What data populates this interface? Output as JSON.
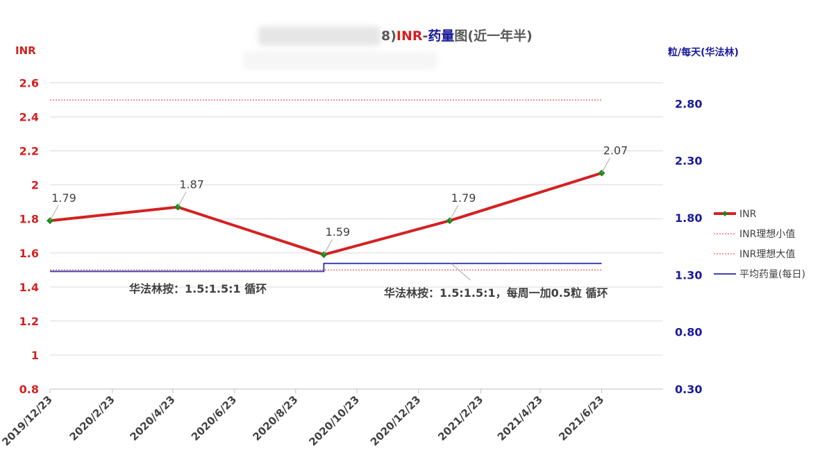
{
  "chart_data": {
    "type": "line",
    "title": "8)INR-药量图(近一年半)",
    "title_parts": [
      {
        "text": "8)",
        "color": "#595959"
      },
      {
        "text": "INR",
        "color": "#d42020"
      },
      {
        "text": "-",
        "color": "#595959"
      },
      {
        "text": "药量",
        "color": "#1a1a9a"
      },
      {
        "text": "图(近一年半)",
        "color": "#595959"
      }
    ],
    "y_left": {
      "label": "INR",
      "range": [
        0.8,
        2.7
      ],
      "ticks": [
        "0.8",
        "1",
        "1.2",
        "1.4",
        "1.6",
        "1.8",
        "2",
        "2.2",
        "2.4",
        "2.6"
      ],
      "color": "#d42020"
    },
    "y_right": {
      "label": "粒/每天(华法林)",
      "range": [
        0.3,
        3.13
      ],
      "ticks": [
        "0.30",
        "0.80",
        "1.30",
        "1.80",
        "2.30",
        "2.80"
      ],
      "color": "#1a1a9a"
    },
    "x_axis": {
      "start": "2019/12/23",
      "end": "2021/8/23",
      "ticks": [
        "2019/12/23",
        "2020/2/23",
        "2020/4/23",
        "2020/6/23",
        "2020/8/23",
        "2020/10/23",
        "2020/12/23",
        "2021/2/23",
        "2021/4/23",
        "2021/6/23"
      ]
    },
    "grid": true,
    "legend_position": "right",
    "series": [
      {
        "name": "INR",
        "axis": "left",
        "color": "#d42020",
        "style": "thick-line-diamond",
        "points": [
          {
            "x": "2019/12/23",
            "y": 1.79,
            "label": "1.79"
          },
          {
            "x": "2020/4/28",
            "y": 1.87,
            "label": "1.87"
          },
          {
            "x": "2020/9/20",
            "y": 1.59,
            "label": "1.59"
          },
          {
            "x": "2021/1/23",
            "y": 1.79,
            "label": "1.79"
          },
          {
            "x": "2021/6/23",
            "y": 2.07,
            "label": "2.07"
          }
        ]
      },
      {
        "name": "INR理想小值",
        "axis": "left",
        "color": "#e03030",
        "style": "dotted",
        "points": [
          {
            "x": "2019/12/23",
            "y": 1.5
          },
          {
            "x": "2021/6/23",
            "y": 1.5
          }
        ]
      },
      {
        "name": "INR理想大值",
        "axis": "left",
        "color": "#e03030",
        "style": "dotted",
        "points": [
          {
            "x": "2019/12/23",
            "y": 2.5
          },
          {
            "x": "2021/6/23",
            "y": 2.5
          }
        ]
      },
      {
        "name": "平均药量(每日)",
        "axis": "right",
        "color": "#4040b0",
        "style": "step",
        "points": [
          {
            "x": "2019/12/23",
            "y": 1.33
          },
          {
            "x": "2020/9/20",
            "y": 1.33
          },
          {
            "x": "2020/9/20",
            "y": 1.4
          },
          {
            "x": "2021/6/23",
            "y": 1.4
          }
        ]
      }
    ],
    "annotations": [
      {
        "text": "华法林按：1.5:1.5:1 循环",
        "anchor_x": "2020/4/23",
        "anchor_y_right": 1.33
      },
      {
        "text": "华法林按：1.5:1.5:1，每周一加0.5粒 循环",
        "anchor_x": "2021/1/23",
        "anchor_y_right": 1.4
      }
    ]
  }
}
